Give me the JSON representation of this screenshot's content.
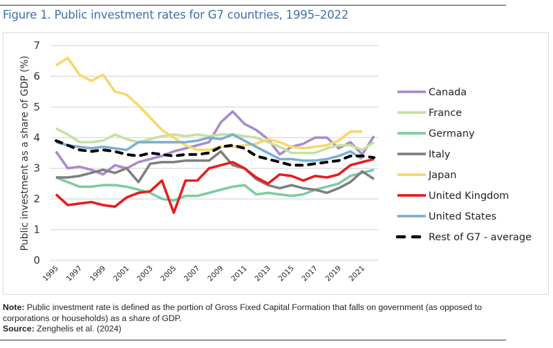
{
  "figure": {
    "title": "Figure 1. Public investment rates for G7 countries, 1995–2022"
  },
  "footer": {
    "note_label": "Note:",
    "note_text": " Public investment rate is defined as the portion of Gross Fixed Capital Formation that falls on government (as opposed to corporations or households) as a share of GDP.",
    "source_label": "Source:",
    "source_text": " Zenghelis et al. (2024)"
  },
  "chart_data": {
    "type": "line",
    "title": "Figure 1. Public investment rates for G7 countries, 1995–2022",
    "xlabel": "",
    "ylabel": "Public investment as a share of GDP (%)",
    "ylim": [
      0,
      7
    ],
    "yticks": [
      0,
      1,
      2,
      3,
      4,
      5,
      6,
      7
    ],
    "grid": true,
    "legend_position": "right",
    "x": [
      1995,
      1996,
      1997,
      1998,
      1999,
      2000,
      2001,
      2002,
      2003,
      2004,
      2005,
      2006,
      2007,
      2008,
      2009,
      2010,
      2011,
      2012,
      2013,
      2014,
      2015,
      2016,
      2017,
      2018,
      2019,
      2020,
      2021,
      2022
    ],
    "xtick_labels": [
      "1995",
      "1997",
      "1999",
      "2001",
      "2003",
      "2005",
      "2007",
      "2009",
      "2011",
      "2013",
      "2015",
      "2017",
      "2019",
      "2021"
    ],
    "series": [
      {
        "name": "Canada",
        "color": "#a98bc9",
        "dashed": false,
        "values": [
          3.55,
          3.0,
          3.05,
          2.95,
          2.8,
          3.1,
          3.0,
          3.2,
          3.3,
          3.4,
          3.55,
          3.65,
          3.75,
          3.85,
          4.5,
          4.85,
          4.45,
          4.25,
          3.95,
          3.45,
          3.7,
          3.8,
          4.0,
          4.0,
          3.65,
          3.85,
          3.45,
          4.05
        ]
      },
      {
        "name": "France",
        "color": "#c6e0a4",
        "dashed": false,
        "values": [
          4.3,
          4.1,
          3.85,
          3.85,
          3.9,
          4.1,
          3.95,
          3.85,
          3.95,
          4.05,
          4.1,
          4.05,
          4.1,
          4.05,
          4.1,
          4.1,
          4.05,
          4.0,
          3.85,
          3.7,
          3.5,
          3.5,
          3.5,
          3.65,
          3.75,
          3.75,
          3.6,
          3.85
        ]
      },
      {
        "name": "Germany",
        "color": "#7ccca0",
        "dashed": false,
        "values": [
          2.7,
          2.55,
          2.4,
          2.4,
          2.45,
          2.45,
          2.4,
          2.3,
          2.2,
          2.0,
          1.95,
          2.1,
          2.1,
          2.2,
          2.3,
          2.4,
          2.45,
          2.15,
          2.2,
          2.15,
          2.1,
          2.15,
          2.3,
          2.4,
          2.5,
          2.75,
          2.85,
          2.95
        ]
      },
      {
        "name": "Italy",
        "color": "#7f7f7f",
        "dashed": false,
        "values": [
          2.7,
          2.7,
          2.75,
          2.85,
          2.95,
          2.85,
          3.0,
          2.55,
          3.15,
          3.2,
          3.2,
          3.25,
          3.25,
          3.25,
          3.55,
          3.1,
          3.0,
          2.65,
          2.45,
          2.35,
          2.45,
          2.35,
          2.3,
          2.2,
          2.35,
          2.55,
          2.9,
          2.65
        ]
      },
      {
        "name": "Japan",
        "color": "#f8d66d",
        "dashed": false,
        "values": [
          6.35,
          6.6,
          6.05,
          5.85,
          6.05,
          5.5,
          5.4,
          5.05,
          4.65,
          4.25,
          4.0,
          3.75,
          3.6,
          3.6,
          3.7,
          3.7,
          3.75,
          3.8,
          3.95,
          3.85,
          3.7,
          3.65,
          3.7,
          3.75,
          3.9,
          4.2,
          4.2,
          null
        ]
      },
      {
        "name": "United Kingdom",
        "color": "#e81c1c",
        "dashed": false,
        "values": [
          2.15,
          1.8,
          1.85,
          1.9,
          1.8,
          1.75,
          2.05,
          2.2,
          2.25,
          2.6,
          1.55,
          2.6,
          2.6,
          3.0,
          3.1,
          3.2,
          3.0,
          2.7,
          2.5,
          2.8,
          2.75,
          2.6,
          2.75,
          2.7,
          2.8,
          3.1,
          3.2,
          3.3
        ]
      },
      {
        "name": "United States",
        "color": "#7bafd4",
        "dashed": false,
        "values": [
          3.85,
          3.75,
          3.7,
          3.65,
          3.7,
          3.65,
          3.6,
          3.85,
          3.85,
          3.85,
          3.85,
          3.85,
          3.9,
          4.0,
          3.95,
          4.1,
          3.9,
          3.7,
          3.5,
          3.3,
          3.3,
          3.25,
          3.25,
          3.3,
          3.4,
          3.55,
          3.3,
          null
        ]
      },
      {
        "name": "Rest of G7 - average",
        "color": "#000000",
        "dashed": true,
        "values": [
          3.9,
          3.75,
          3.6,
          3.55,
          3.6,
          3.55,
          3.45,
          3.4,
          3.5,
          3.45,
          3.4,
          3.45,
          3.45,
          3.5,
          3.7,
          3.75,
          3.65,
          3.4,
          3.3,
          3.2,
          3.1,
          3.1,
          3.15,
          3.2,
          3.25,
          3.4,
          3.4,
          3.35
        ]
      }
    ]
  }
}
